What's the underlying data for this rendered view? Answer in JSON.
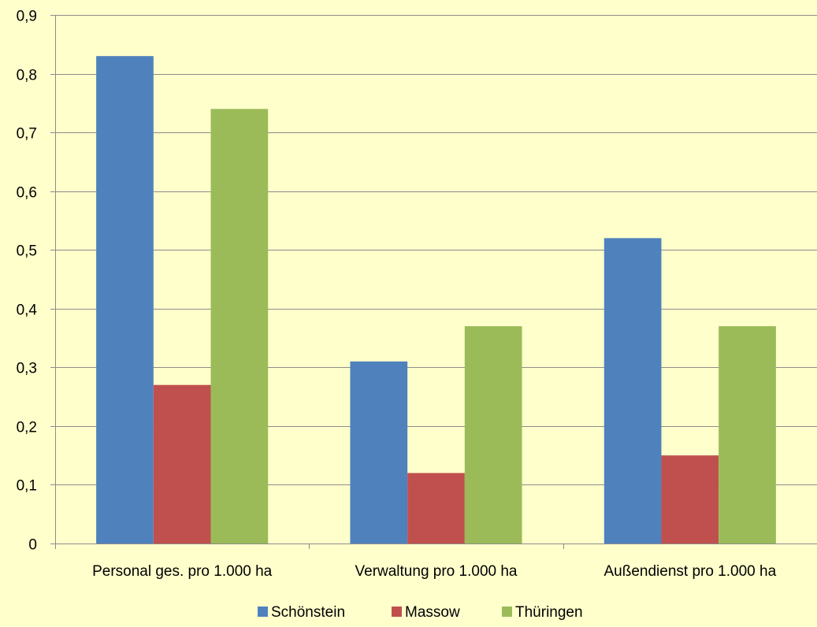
{
  "chart_data": {
    "type": "bar",
    "categories": [
      "Personal ges. pro 1.000 ha",
      "Verwaltung pro 1.000 ha",
      "Außendienst pro 1.000 ha"
    ],
    "series": [
      {
        "name": "Schönstein",
        "color": "#4F81BD",
        "values": [
          0.83,
          0.31,
          0.52
        ]
      },
      {
        "name": "Massow",
        "color": "#C0504D",
        "values": [
          0.27,
          0.12,
          0.15
        ]
      },
      {
        "name": "Thüringen",
        "color": "#9BBB59",
        "values": [
          0.74,
          0.37,
          0.37
        ]
      }
    ],
    "ylim": [
      0,
      0.9
    ],
    "yticks": [
      0,
      0.1,
      0.2,
      0.3,
      0.4,
      0.5,
      0.6,
      0.7,
      0.8,
      0.9
    ],
    "ytick_labels": [
      "0",
      "0,1",
      "0,2",
      "0,3",
      "0,4",
      "0,5",
      "0,6",
      "0,7",
      "0,8",
      "0,9"
    ],
    "grid": true,
    "legend_position": "bottom",
    "background_color": "#FFFFCC",
    "grid_color": "#8C8C8C"
  }
}
